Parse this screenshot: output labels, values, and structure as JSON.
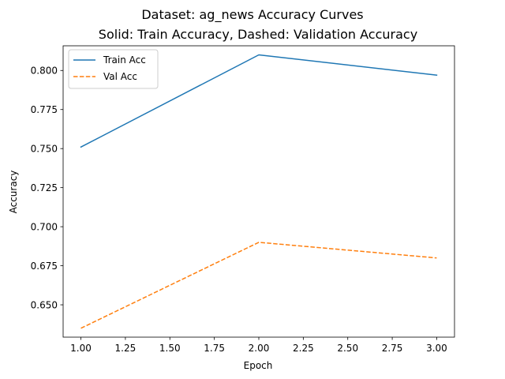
{
  "chart_data": {
    "type": "line",
    "title": "Dataset: ag_news Accuracy Curves",
    "subtitle": "Solid: Train Accuracy, Dashed: Validation Accuracy",
    "xlabel": "Epoch",
    "ylabel": "Accuracy",
    "x": [
      1,
      2,
      3
    ],
    "xlim": [
      0.9,
      3.1
    ],
    "ylim": [
      0.6293,
      0.8158
    ],
    "xticks": [
      1.0,
      1.25,
      1.5,
      1.75,
      2.0,
      2.25,
      2.5,
      2.75,
      3.0
    ],
    "xtick_labels": [
      "1.00",
      "1.25",
      "1.50",
      "1.75",
      "2.00",
      "2.25",
      "2.50",
      "2.75",
      "3.00"
    ],
    "yticks": [
      0.65,
      0.675,
      0.7,
      0.725,
      0.75,
      0.775,
      0.8
    ],
    "ytick_labels": [
      "0.650",
      "0.675",
      "0.700",
      "0.725",
      "0.750",
      "0.775",
      "0.800"
    ],
    "grid": false,
    "legend_position": "top-left",
    "series": [
      {
        "name": "Train Acc",
        "values": [
          0.751,
          0.81,
          0.797
        ],
        "color": "#1f77b4",
        "style": "solid"
      },
      {
        "name": "Val Acc",
        "values": [
          0.635,
          0.69,
          0.68
        ],
        "color": "#ff7f0e",
        "style": "dashed"
      }
    ]
  }
}
